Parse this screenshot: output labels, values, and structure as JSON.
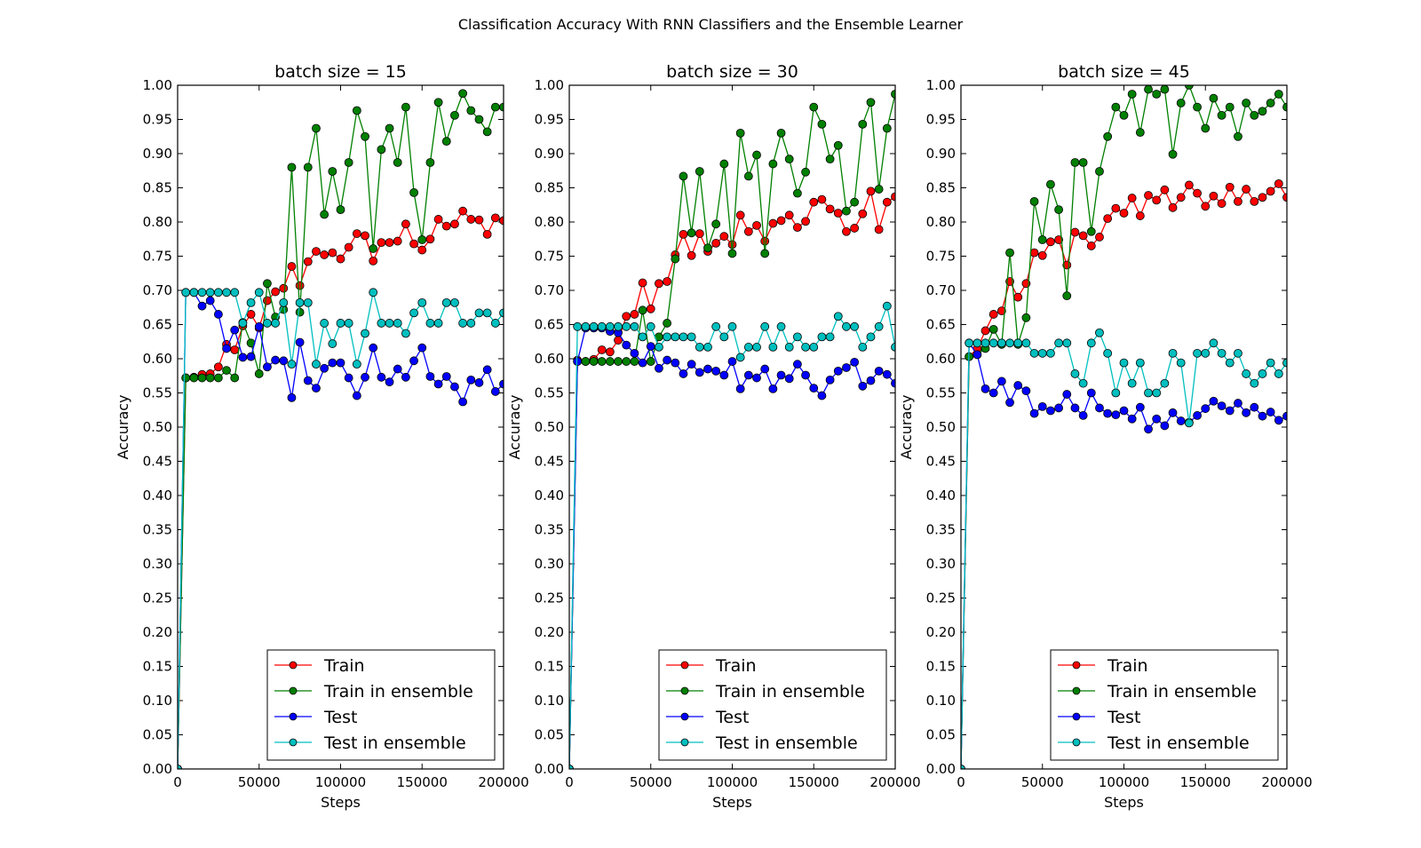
{
  "figure": {
    "suptitle": "Classification Accuracy With RNN Classifiers and the Ensemble Learner"
  },
  "colors": {
    "Train": "#ff0000",
    "Train in ensemble": "#008000",
    "Test": "#0000ff",
    "Test in ensemble": "#00bfbf"
  },
  "chart_data": [
    {
      "type": "line",
      "title": "batch size = 15",
      "xlabel": "Steps",
      "ylabel": "Accuracy",
      "xlim": [
        0,
        200000
      ],
      "ylim": [
        0,
        1
      ],
      "xticks": [
        0,
        50000,
        100000,
        150000,
        200000
      ],
      "xtick_labels": [
        "0",
        "50000",
        "100000",
        "150000",
        "200000"
      ],
      "yticks": [
        0,
        0.05,
        0.1,
        0.15,
        0.2,
        0.25,
        0.3,
        0.35,
        0.4,
        0.45,
        0.5,
        0.55,
        0.6,
        0.65,
        0.7,
        0.75,
        0.8,
        0.85,
        0.9,
        0.95,
        1.0
      ],
      "ytick_labels": [
        "0.00",
        "0.05",
        "0.10",
        "0.15",
        "0.20",
        "0.25",
        "0.30",
        "0.35",
        "0.40",
        "0.45",
        "0.50",
        "0.55",
        "0.60",
        "0.65",
        "0.70",
        "0.75",
        "0.80",
        "0.85",
        "0.90",
        "0.95",
        "1.00"
      ],
      "legend_position": "lower right",
      "grid": false,
      "x": [
        0,
        5000,
        10000,
        15000,
        20000,
        25000,
        30000,
        35000,
        40000,
        45000,
        50000,
        55000,
        60000,
        65000,
        70000,
        75000,
        80000,
        85000,
        90000,
        95000,
        100000,
        105000,
        110000,
        115000,
        120000,
        125000,
        130000,
        135000,
        140000,
        145000,
        150000,
        155000,
        160000,
        165000,
        170000,
        175000,
        180000,
        185000,
        190000,
        195000,
        200000
      ],
      "series": [
        {
          "name": "Train",
          "values": [
            0,
            0.572,
            0.573,
            0.577,
            0.578,
            0.588,
            0.621,
            0.613,
            0.648,
            0.665,
            0.645,
            0.685,
            0.698,
            0.703,
            0.735,
            0.707,
            0.742,
            0.757,
            0.752,
            0.755,
            0.746,
            0.763,
            0.783,
            0.78,
            0.743,
            0.77,
            0.77,
            0.772,
            0.797,
            0.768,
            0.759,
            0.775,
            0.804,
            0.794,
            0.797,
            0.816,
            0.804,
            0.803,
            0.782,
            0.806,
            0.802
          ]
        },
        {
          "name": "Train in ensemble",
          "values": [
            0,
            0.572,
            0.572,
            0.572,
            0.572,
            0.572,
            0.583,
            0.572,
            0.653,
            0.623,
            0.578,
            0.71,
            0.661,
            0.672,
            0.88,
            0.668,
            0.88,
            0.937,
            0.811,
            0.874,
            0.818,
            0.887,
            0.963,
            0.925,
            0.761,
            0.906,
            0.937,
            0.887,
            0.968,
            0.843,
            0.774,
            0.887,
            0.975,
            0.918,
            0.956,
            0.988,
            0.963,
            0.95,
            0.932,
            0.968,
            0.968
          ]
        },
        {
          "name": "Test",
          "values": [
            0,
            0.697,
            0.697,
            0.677,
            0.685,
            0.665,
            0.615,
            0.642,
            0.602,
            0.603,
            0.647,
            0.588,
            0.598,
            0.597,
            0.543,
            0.624,
            0.568,
            0.557,
            0.586,
            0.594,
            0.594,
            0.572,
            0.546,
            0.573,
            0.616,
            0.573,
            0.566,
            0.585,
            0.573,
            0.597,
            0.616,
            0.574,
            0.563,
            0.574,
            0.559,
            0.537,
            0.569,
            0.565,
            0.584,
            0.552,
            0.563
          ]
        },
        {
          "name": "Test in ensemble",
          "values": [
            0,
            0.697,
            0.697,
            0.697,
            0.697,
            0.697,
            0.697,
            0.697,
            0.652,
            0.682,
            0.697,
            0.652,
            0.652,
            0.682,
            0.592,
            0.682,
            0.682,
            0.592,
            0.652,
            0.622,
            0.652,
            0.652,
            0.592,
            0.637,
            0.697,
            0.652,
            0.652,
            0.652,
            0.637,
            0.667,
            0.682,
            0.652,
            0.652,
            0.682,
            0.682,
            0.652,
            0.652,
            0.667,
            0.667,
            0.652,
            0.667
          ]
        }
      ]
    },
    {
      "type": "line",
      "title": "batch size = 30",
      "xlabel": "Steps",
      "ylabel": "Accuracy",
      "xlim": [
        0,
        200000
      ],
      "ylim": [
        0,
        1
      ],
      "xticks": [
        0,
        50000,
        100000,
        150000,
        200000
      ],
      "xtick_labels": [
        "0",
        "50000",
        "100000",
        "150000",
        "200000"
      ],
      "yticks": [
        0,
        0.05,
        0.1,
        0.15,
        0.2,
        0.25,
        0.3,
        0.35,
        0.4,
        0.45,
        0.5,
        0.55,
        0.6,
        0.65,
        0.7,
        0.75,
        0.8,
        0.85,
        0.9,
        0.95,
        1.0
      ],
      "ytick_labels": [
        "0.00",
        "0.05",
        "0.10",
        "0.15",
        "0.20",
        "0.25",
        "0.30",
        "0.35",
        "0.40",
        "0.45",
        "0.50",
        "0.55",
        "0.60",
        "0.65",
        "0.70",
        "0.75",
        "0.80",
        "0.85",
        "0.90",
        "0.95",
        "1.00"
      ],
      "legend_position": "lower right",
      "grid": false,
      "x": [
        0,
        5000,
        10000,
        15000,
        20000,
        25000,
        30000,
        35000,
        40000,
        45000,
        50000,
        55000,
        60000,
        65000,
        70000,
        75000,
        80000,
        85000,
        90000,
        95000,
        100000,
        105000,
        110000,
        115000,
        120000,
        125000,
        130000,
        135000,
        140000,
        145000,
        150000,
        155000,
        160000,
        165000,
        170000,
        175000,
        180000,
        185000,
        190000,
        195000,
        200000
      ],
      "series": [
        {
          "name": "Train",
          "values": [
            0,
            0.598,
            0.596,
            0.599,
            0.613,
            0.61,
            0.627,
            0.662,
            0.665,
            0.711,
            0.673,
            0.71,
            0.713,
            0.752,
            0.782,
            0.751,
            0.783,
            0.757,
            0.769,
            0.779,
            0.767,
            0.81,
            0.786,
            0.795,
            0.772,
            0.798,
            0.802,
            0.81,
            0.792,
            0.801,
            0.829,
            0.833,
            0.819,
            0.813,
            0.786,
            0.791,
            0.812,
            0.845,
            0.789,
            0.829,
            0.837
          ]
        },
        {
          "name": "Train in ensemble",
          "values": [
            0,
            0.596,
            0.596,
            0.596,
            0.596,
            0.596,
            0.596,
            0.596,
            0.596,
            0.671,
            0.596,
            0.632,
            0.652,
            0.746,
            0.867,
            0.784,
            0.874,
            0.762,
            0.797,
            0.885,
            0.754,
            0.93,
            0.867,
            0.898,
            0.754,
            0.885,
            0.93,
            0.892,
            0.842,
            0.873,
            0.968,
            0.943,
            0.892,
            0.912,
            0.816,
            0.829,
            0.943,
            0.975,
            0.848,
            0.937,
            0.987
          ]
        },
        {
          "name": "Test",
          "values": [
            0,
            0.596,
            0.645,
            0.645,
            0.645,
            0.64,
            0.638,
            0.62,
            0.608,
            0.594,
            0.618,
            0.586,
            0.598,
            0.594,
            0.578,
            0.592,
            0.58,
            0.585,
            0.582,
            0.576,
            0.596,
            0.556,
            0.576,
            0.572,
            0.585,
            0.556,
            0.576,
            0.571,
            0.592,
            0.576,
            0.557,
            0.546,
            0.569,
            0.582,
            0.587,
            0.595,
            0.56,
            0.568,
            0.582,
            0.577,
            0.564
          ]
        },
        {
          "name": "Test in ensemble",
          "values": [
            0,
            0.647,
            0.647,
            0.647,
            0.647,
            0.647,
            0.647,
            0.647,
            0.647,
            0.632,
            0.647,
            0.617,
            0.632,
            0.632,
            0.632,
            0.632,
            0.617,
            0.617,
            0.647,
            0.632,
            0.647,
            0.602,
            0.617,
            0.617,
            0.647,
            0.617,
            0.647,
            0.617,
            0.632,
            0.617,
            0.617,
            0.632,
            0.632,
            0.662,
            0.647,
            0.647,
            0.617,
            0.632,
            0.647,
            0.677,
            0.617
          ]
        }
      ]
    },
    {
      "type": "line",
      "title": "batch size = 45",
      "xlabel": "Steps",
      "ylabel": "Accuracy",
      "xlim": [
        0,
        200000
      ],
      "ylim": [
        0,
        1
      ],
      "xticks": [
        0,
        50000,
        100000,
        150000,
        200000
      ],
      "xtick_labels": [
        "0",
        "50000",
        "100000",
        "150000",
        "200000"
      ],
      "yticks": [
        0,
        0.05,
        0.1,
        0.15,
        0.2,
        0.25,
        0.3,
        0.35,
        0.4,
        0.45,
        0.5,
        0.55,
        0.6,
        0.65,
        0.7,
        0.75,
        0.8,
        0.85,
        0.9,
        0.95,
        1.0
      ],
      "ytick_labels": [
        "0.00",
        "0.05",
        "0.10",
        "0.15",
        "0.20",
        "0.25",
        "0.30",
        "0.35",
        "0.40",
        "0.45",
        "0.50",
        "0.55",
        "0.60",
        "0.65",
        "0.70",
        "0.75",
        "0.80",
        "0.85",
        "0.90",
        "0.95",
        "1.00"
      ],
      "legend_position": "lower right",
      "grid": false,
      "x": [
        0,
        5000,
        10000,
        15000,
        20000,
        25000,
        30000,
        35000,
        40000,
        45000,
        50000,
        55000,
        60000,
        65000,
        70000,
        75000,
        80000,
        85000,
        90000,
        95000,
        100000,
        105000,
        110000,
        115000,
        120000,
        125000,
        130000,
        135000,
        140000,
        145000,
        150000,
        155000,
        160000,
        165000,
        170000,
        175000,
        180000,
        185000,
        190000,
        195000,
        200000
      ],
      "series": [
        {
          "name": "Train",
          "values": [
            0,
            0.603,
            0.615,
            0.641,
            0.665,
            0.67,
            0.713,
            0.69,
            0.71,
            0.755,
            0.751,
            0.771,
            0.774,
            0.737,
            0.785,
            0.78,
            0.765,
            0.778,
            0.805,
            0.82,
            0.813,
            0.835,
            0.809,
            0.839,
            0.832,
            0.847,
            0.821,
            0.836,
            0.854,
            0.842,
            0.823,
            0.838,
            0.827,
            0.851,
            0.83,
            0.848,
            0.83,
            0.836,
            0.845,
            0.856,
            0.836
          ]
        },
        {
          "name": "Train in ensemble",
          "values": [
            0,
            0.603,
            0.606,
            0.615,
            0.643,
            0.621,
            0.755,
            0.621,
            0.66,
            0.83,
            0.774,
            0.855,
            0.818,
            0.692,
            0.887,
            0.887,
            0.786,
            0.874,
            0.925,
            0.968,
            0.956,
            0.987,
            0.931,
            0.994,
            0.987,
            0.994,
            0.899,
            0.974,
            1.0,
            0.968,
            0.937,
            0.981,
            0.956,
            0.968,
            0.925,
            0.974,
            0.956,
            0.962,
            0.974,
            0.987,
            0.968
          ]
        },
        {
          "name": "Test",
          "values": [
            0,
            0.623,
            0.606,
            0.556,
            0.55,
            0.567,
            0.536,
            0.561,
            0.553,
            0.52,
            0.53,
            0.524,
            0.528,
            0.548,
            0.528,
            0.517,
            0.55,
            0.528,
            0.52,
            0.518,
            0.524,
            0.512,
            0.529,
            0.497,
            0.512,
            0.502,
            0.521,
            0.509,
            0.507,
            0.517,
            0.527,
            0.538,
            0.531,
            0.524,
            0.535,
            0.521,
            0.529,
            0.516,
            0.522,
            0.51,
            0.516
          ]
        },
        {
          "name": "Test in ensemble",
          "values": [
            0,
            0.623,
            0.623,
            0.623,
            0.623,
            0.623,
            0.623,
            0.623,
            0.623,
            0.608,
            0.608,
            0.608,
            0.623,
            0.623,
            0.578,
            0.564,
            0.623,
            0.638,
            0.608,
            0.55,
            0.594,
            0.564,
            0.594,
            0.55,
            0.55,
            0.564,
            0.608,
            0.594,
            0.506,
            0.608,
            0.608,
            0.623,
            0.608,
            0.594,
            0.608,
            0.578,
            0.564,
            0.578,
            0.594,
            0.578,
            0.594
          ]
        }
      ]
    }
  ]
}
